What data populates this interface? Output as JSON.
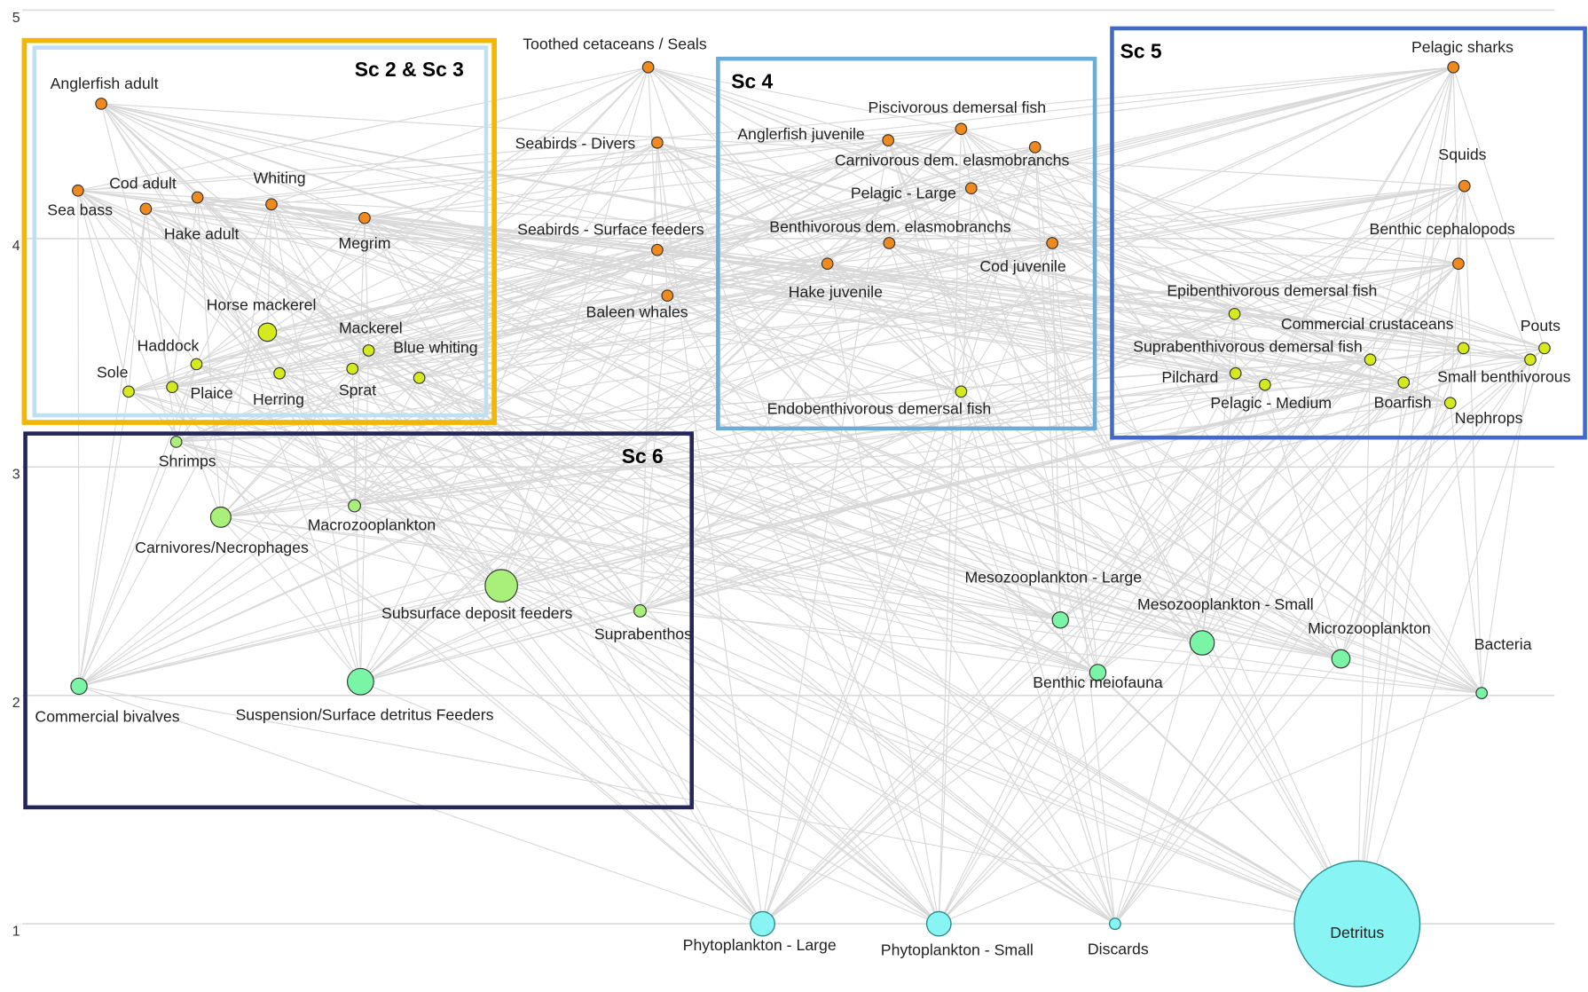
{
  "axis": {
    "ticks": [
      1,
      2,
      3,
      4,
      5
    ]
  },
  "scenarios": [
    {
      "label": "Sc 2 & Sc 3"
    },
    {
      "label": "Sc 4"
    },
    {
      "label": "Sc 5"
    },
    {
      "label": "Sc 6"
    }
  ],
  "nodes": [
    {
      "label": "Anglerfish adult",
      "trophic_level": 4.59
    },
    {
      "label": "Sea bass",
      "trophic_level": 4.21
    },
    {
      "label": "Cod adult",
      "trophic_level": 4.18
    },
    {
      "label": "Hake adult",
      "trophic_level": 4.13
    },
    {
      "label": "Whiting",
      "trophic_level": 4.15
    },
    {
      "label": "Megrim",
      "trophic_level": 4.09
    },
    {
      "label": "Horse mackerel",
      "trophic_level": 3.59
    },
    {
      "label": "Mackerel",
      "trophic_level": 3.51
    },
    {
      "label": "Blue whiting",
      "trophic_level": 3.39
    },
    {
      "label": "Sprat",
      "trophic_level": 3.43
    },
    {
      "label": "Herring",
      "trophic_level": 3.41
    },
    {
      "label": "Haddock",
      "trophic_level": 3.45
    },
    {
      "label": "Plaice",
      "trophic_level": 3.35
    },
    {
      "label": "Sole",
      "trophic_level": 3.33
    },
    {
      "label": "Toothed cetaceans / Seals",
      "trophic_level": 4.75
    },
    {
      "label": "Seabirds - Divers",
      "trophic_level": 4.42
    },
    {
      "label": "Seabirds - Surface feeders",
      "trophic_level": 3.95
    },
    {
      "label": "Baleen whales",
      "trophic_level": 3.75
    },
    {
      "label": "Anglerfish juvenile",
      "trophic_level": 4.43
    },
    {
      "label": "Piscivorous demersal fish",
      "trophic_level": 4.48
    },
    {
      "label": "Carnivorous dem. elasmobranchs",
      "trophic_level": 4.4
    },
    {
      "label": "Pelagic - Large",
      "trophic_level": 4.22
    },
    {
      "label": "Benthivorous dem. elasmobranchs",
      "trophic_level": 3.98
    },
    {
      "label": "Cod juvenile",
      "trophic_level": 3.98
    },
    {
      "label": "Hake juvenile",
      "trophic_level": 3.89
    },
    {
      "label": "Endobenthivorous demersal fish",
      "trophic_level": 3.33
    },
    {
      "label": "Pelagic sharks",
      "trophic_level": 4.75
    },
    {
      "label": "Squids",
      "trophic_level": 4.23
    },
    {
      "label": "Benthic cephalopods",
      "trophic_level": 3.89
    },
    {
      "label": "Epibenthivorous demersal fish",
      "trophic_level": 3.67
    },
    {
      "label": "Commercial crustaceans",
      "trophic_level": 3.52
    },
    {
      "label": "Pouts",
      "trophic_level": 3.52
    },
    {
      "label": "Small benthivorous",
      "trophic_level": 3.47
    },
    {
      "label": "Suprabenthivorous demersal fish",
      "trophic_level": 3.47
    },
    {
      "label": "Pilchard",
      "trophic_level": 3.41
    },
    {
      "label": "Pelagic - Medium",
      "trophic_level": 3.36
    },
    {
      "label": "Boarfish",
      "trophic_level": 3.37
    },
    {
      "label": "Nephrops",
      "trophic_level": 3.28
    },
    {
      "label": "Shrimps",
      "trophic_level": 3.11
    },
    {
      "label": "Carnivores/Necrophages",
      "trophic_level": 2.78
    },
    {
      "label": "Macrozooplankton",
      "trophic_level": 2.83
    },
    {
      "label": "Subsurface deposit feeders",
      "trophic_level": 2.48
    },
    {
      "label": "Suprabenthos",
      "trophic_level": 2.37
    },
    {
      "label": "Commercial bivalves",
      "trophic_level": 2.04
    },
    {
      "label": "Suspension/Surface detritus Feeders",
      "trophic_level": 2.06
    },
    {
      "label": "Mesozooplankton - Large",
      "trophic_level": 2.33
    },
    {
      "label": "Mesozooplankton - Small",
      "trophic_level": 2.23
    },
    {
      "label": "Microzooplankton",
      "trophic_level": 2.16
    },
    {
      "label": "Benthic meiofauna",
      "trophic_level": 2.1
    },
    {
      "label": "Bacteria",
      "trophic_level": 2.01
    },
    {
      "label": "Phytoplankton - Large",
      "trophic_level": 1.0
    },
    {
      "label": "Phytoplankton - Small",
      "trophic_level": 1.0
    },
    {
      "label": "Discards",
      "trophic_level": 1.0
    },
    {
      "label": "Detritus",
      "trophic_level": 1.0
    }
  ]
}
